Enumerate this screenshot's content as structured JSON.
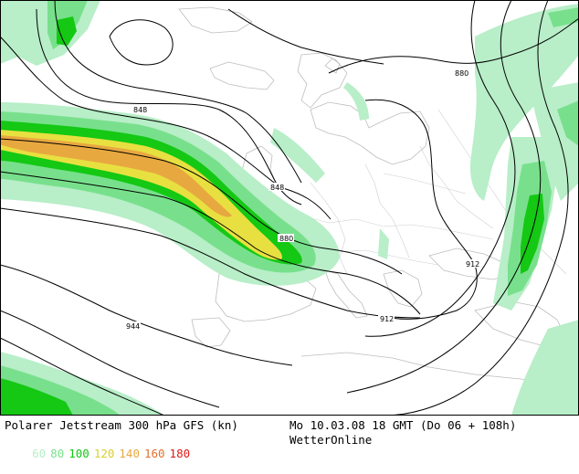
{
  "map": {
    "contour_labels": [
      "848",
      "848",
      "880",
      "880",
      "912",
      "912",
      "944"
    ],
    "legend_speeds": [
      "60",
      "80",
      "100",
      "120",
      "140",
      "160",
      "180"
    ],
    "speed_colors": {
      "60": "#b8eec8",
      "80": "#78e08c",
      "100": "#14c814",
      "120": "#e8e040",
      "140": "#e8a840",
      "160": "#e07030",
      "180": "#e01818"
    }
  },
  "footer": {
    "title": "Polarer Jetstream 300 hPa GFS (kn)",
    "datetime": "Mo 10.03.08 18 GMT (Do 06 + 108h)",
    "source": "WetterOnline"
  }
}
